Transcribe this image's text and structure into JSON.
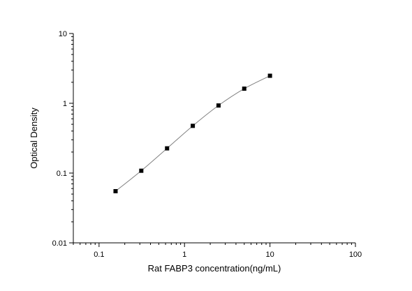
{
  "chart_data": {
    "type": "scatter",
    "title": "",
    "xlabel": "Rat FABP3 concentration(ng/mL)",
    "ylabel": "Optical Density",
    "x_scale": "log",
    "y_scale": "log",
    "xlim": [
      0.05,
      100
    ],
    "ylim": [
      0.01,
      10
    ],
    "grid": false,
    "legend": "none",
    "x_ticks": [
      {
        "value": 0.1,
        "label": "0.1"
      },
      {
        "value": 1,
        "label": "1"
      },
      {
        "value": 10,
        "label": "10"
      },
      {
        "value": 100,
        "label": "100"
      }
    ],
    "y_ticks": [
      {
        "value": 0.01,
        "label": "0.01"
      },
      {
        "value": 0.1,
        "label": "0.1"
      },
      {
        "value": 1,
        "label": "1"
      },
      {
        "value": 10,
        "label": "10"
      }
    ],
    "series": [
      {
        "x": [
          0.156,
          0.312,
          0.625,
          1.25,
          2.5,
          5,
          10
        ],
        "y": [
          0.055,
          0.108,
          0.226,
          0.475,
          0.93,
          1.62,
          2.48
        ],
        "marker": "square",
        "marker_color": "#000000",
        "fit_curve": true,
        "curve_color": "#808080"
      }
    ]
  }
}
